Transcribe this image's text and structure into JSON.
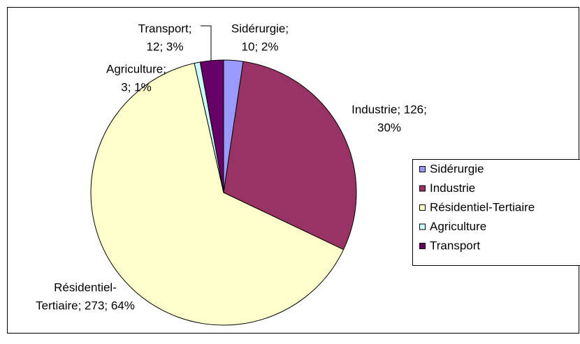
{
  "chart_data": {
    "type": "pie",
    "categories": [
      "Sidérurgie",
      "Industrie",
      "Résidentiel-Tertiaire",
      "Agriculture",
      "Transport"
    ],
    "values": [
      10,
      126,
      273,
      3,
      12
    ],
    "value_labels": [
      [
        "Sidérurgie;",
        "10; 2%"
      ],
      [
        "Industrie; 126;",
        "30%"
      ],
      [
        "Résidentiel-",
        "Tertiaire; 273; 64%"
      ],
      [
        "Agriculture;",
        "3; 1%"
      ],
      [
        "Transport;",
        "12; 3%"
      ]
    ],
    "colors": [
      "#9999ff",
      "#993366",
      "#ffffcc",
      "#ccffff",
      "#660066"
    ],
    "legend": "right"
  }
}
